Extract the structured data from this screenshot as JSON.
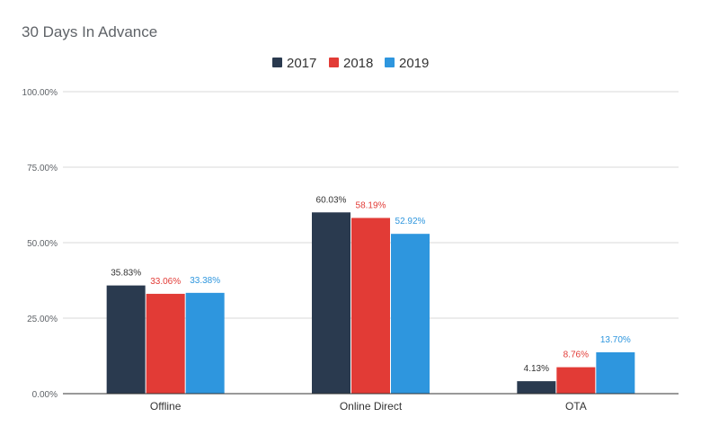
{
  "chart_data": {
    "type": "bar",
    "title": "30 Days In Advance",
    "categories": [
      "Offline",
      "Online Direct",
      "OTA"
    ],
    "series": [
      {
        "name": "2017",
        "color": "#2a3a4f",
        "values": [
          35.83,
          60.03,
          4.13
        ]
      },
      {
        "name": "2018",
        "color": "#e23b36",
        "values": [
          33.06,
          58.19,
          8.76
        ]
      },
      {
        "name": "2019",
        "color": "#2e96de",
        "values": [
          33.38,
          52.92,
          13.7
        ]
      }
    ],
    "data_labels": [
      [
        "35.83%",
        "60.03%",
        "4.13%"
      ],
      [
        "33.06%",
        "58.19%",
        "8.76%"
      ],
      [
        "33.38%",
        "52.92%",
        "13.70%"
      ]
    ],
    "y_ticks": [
      0,
      25,
      50,
      75,
      100
    ],
    "y_tick_labels": [
      "0.00%",
      "25.00%",
      "50.00%",
      "75.00%",
      "100.00%"
    ],
    "ylim": [
      0,
      100
    ],
    "xlabel": "",
    "ylabel": "",
    "grid": true,
    "legend_position": "top"
  }
}
